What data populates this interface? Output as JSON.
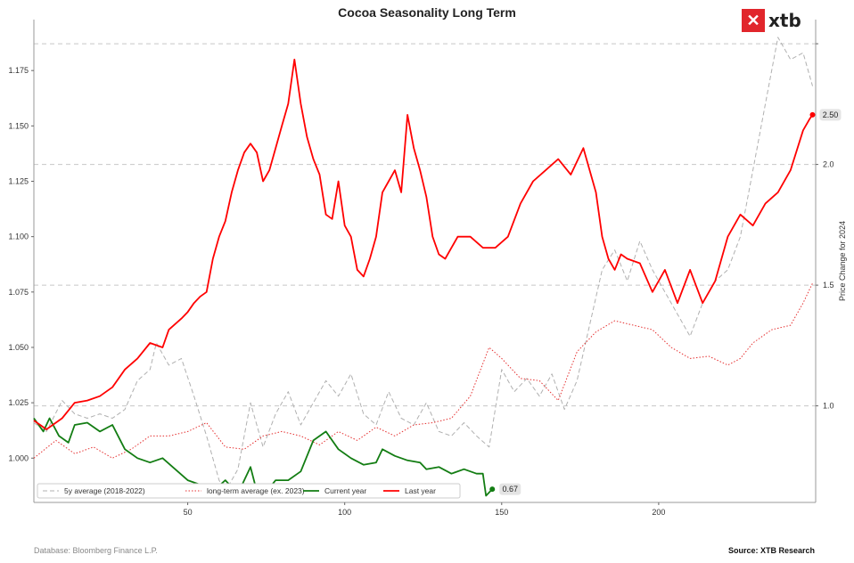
{
  "title": "Cocoa Seasonality Long Term",
  "logo": {
    "mark": "✕",
    "text": "xtb"
  },
  "footer": {
    "left": "Database: Bloomberg Finance L.P.",
    "right": "Source: XTB Research"
  },
  "chart_data": {
    "type": "line",
    "title": "Cocoa Seasonality Long Term",
    "xlabel": "",
    "ylabel_left": "",
    "ylabel_right": "Price Change for 2024",
    "xlim": [
      1,
      250
    ],
    "ylim_left": [
      0.98,
      1.198
    ],
    "ylim_right": [
      0.6,
      2.6
    ],
    "x_ticks": [
      50,
      100,
      150,
      200
    ],
    "y_ticks_left": [
      1.0,
      1.025,
      1.05,
      1.075,
      1.1,
      1.125,
      1.15,
      1.175
    ],
    "y_ticks_left_labels": [
      "1.000",
      "1.025",
      "1.050",
      "1.075",
      "1.100",
      "1.125",
      "1.150",
      "1.175"
    ],
    "y_ticks_right": [
      1.0,
      1.5,
      2.0,
      2.5
    ],
    "y_ticks_right_labels": [
      "1.0",
      "1.5",
      "2.0",
      ""
    ],
    "grid": "horizontal dashed at right-axis ticks",
    "legend": "bottom-left",
    "series": [
      {
        "name": "5y average (2018-2022)",
        "axis": "left",
        "color": "#b0b0b0",
        "style": "dashed",
        "x": [
          1,
          5,
          10,
          14,
          18,
          22,
          26,
          30,
          34,
          38,
          40,
          44,
          48,
          52,
          56,
          60,
          62,
          66,
          70,
          74,
          78,
          82,
          86,
          90,
          94,
          98,
          102,
          106,
          110,
          114,
          118,
          122,
          126,
          130,
          134,
          138,
          142,
          146,
          150,
          154,
          158,
          162,
          166,
          170,
          174,
          178,
          182,
          186,
          190,
          194,
          198,
          202,
          206,
          210,
          214,
          218,
          222,
          226,
          230,
          234,
          238,
          242,
          246,
          249
        ],
        "y": [
          1.016,
          1.012,
          1.026,
          1.02,
          1.018,
          1.02,
          1.018,
          1.022,
          1.035,
          1.04,
          1.052,
          1.042,
          1.045,
          1.028,
          1.01,
          0.99,
          0.985,
          0.995,
          1.025,
          1.005,
          1.02,
          1.03,
          1.015,
          1.025,
          1.035,
          1.028,
          1.038,
          1.02,
          1.015,
          1.03,
          1.018,
          1.015,
          1.025,
          1.012,
          1.01,
          1.016,
          1.01,
          1.005,
          1.04,
          1.03,
          1.036,
          1.028,
          1.038,
          1.022,
          1.035,
          1.06,
          1.085,
          1.094,
          1.08,
          1.098,
          1.085,
          1.075,
          1.065,
          1.055,
          1.07,
          1.08,
          1.085,
          1.1,
          1.13,
          1.16,
          1.19,
          1.18,
          1.183,
          1.168
        ]
      },
      {
        "name": "long-term average (ex. 2023)",
        "axis": "left",
        "color": "#e53030",
        "style": "dotted",
        "x": [
          1,
          8,
          14,
          20,
          26,
          32,
          38,
          44,
          50,
          56,
          62,
          68,
          74,
          80,
          86,
          92,
          98,
          104,
          110,
          116,
          122,
          128,
          134,
          140,
          146,
          150,
          156,
          162,
          168,
          174,
          180,
          186,
          192,
          198,
          204,
          210,
          216,
          222,
          226,
          230,
          236,
          242,
          246,
          249
        ],
        "y": [
          1.0,
          1.008,
          1.002,
          1.005,
          1.0,
          1.004,
          1.01,
          1.01,
          1.012,
          1.016,
          1.005,
          1.004,
          1.01,
          1.012,
          1.01,
          1.006,
          1.012,
          1.008,
          1.014,
          1.01,
          1.015,
          1.016,
          1.018,
          1.028,
          1.05,
          1.045,
          1.036,
          1.035,
          1.026,
          1.048,
          1.057,
          1.062,
          1.06,
          1.058,
          1.05,
          1.045,
          1.046,
          1.042,
          1.045,
          1.052,
          1.058,
          1.06,
          1.07,
          1.079
        ]
      },
      {
        "name": "Current year",
        "axis": "left",
        "color": "#137d13",
        "style": "solid",
        "x": [
          1,
          4,
          6,
          9,
          12,
          14,
          18,
          22,
          26,
          30,
          34,
          38,
          42,
          46,
          50,
          54,
          58,
          62,
          66,
          70,
          72,
          74,
          78,
          82,
          86,
          90,
          94,
          98,
          102,
          106,
          110,
          112,
          116,
          120,
          124,
          126,
          130,
          134,
          138,
          142,
          144,
          145,
          147
        ],
        "y": [
          1.018,
          1.012,
          1.018,
          1.01,
          1.007,
          1.015,
          1.016,
          1.012,
          1.015,
          1.004,
          1.0,
          0.998,
          1.0,
          0.995,
          0.99,
          0.988,
          0.985,
          0.99,
          0.984,
          0.996,
          0.985,
          0.983,
          0.99,
          0.99,
          0.994,
          1.008,
          1.012,
          1.004,
          1.0,
          0.997,
          0.998,
          1.004,
          1.001,
          0.999,
          0.998,
          0.995,
          0.996,
          0.993,
          0.995,
          0.993,
          0.993,
          0.983,
          0.986
        ]
      },
      {
        "name": "Last year",
        "axis": "left",
        "color": "#ff0000",
        "style": "solid",
        "x": [
          1,
          5,
          10,
          14,
          18,
          22,
          26,
          30,
          34,
          38,
          42,
          44,
          48,
          50,
          52,
          54,
          56,
          58,
          60,
          62,
          64,
          66,
          68,
          70,
          72,
          74,
          76,
          78,
          80,
          82,
          84,
          86,
          88,
          90,
          92,
          94,
          96,
          98,
          100,
          102,
          104,
          106,
          108,
          110,
          112,
          114,
          116,
          118,
          120,
          122,
          124,
          126,
          128,
          130,
          132,
          136,
          140,
          144,
          148,
          152,
          156,
          160,
          164,
          168,
          172,
          176,
          180,
          182,
          184,
          186,
          188,
          190,
          194,
          198,
          202,
          206,
          210,
          214,
          218,
          222,
          226,
          230,
          234,
          238,
          242,
          246,
          248,
          249
        ],
        "y": [
          1.017,
          1.013,
          1.018,
          1.025,
          1.026,
          1.028,
          1.032,
          1.04,
          1.045,
          1.052,
          1.05,
          1.058,
          1.063,
          1.066,
          1.07,
          1.073,
          1.075,
          1.09,
          1.1,
          1.107,
          1.12,
          1.13,
          1.138,
          1.142,
          1.138,
          1.125,
          1.13,
          1.14,
          1.15,
          1.16,
          1.18,
          1.16,
          1.145,
          1.135,
          1.128,
          1.11,
          1.108,
          1.125,
          1.105,
          1.1,
          1.085,
          1.082,
          1.09,
          1.1,
          1.12,
          1.125,
          1.13,
          1.12,
          1.155,
          1.14,
          1.13,
          1.118,
          1.1,
          1.092,
          1.09,
          1.1,
          1.1,
          1.095,
          1.095,
          1.1,
          1.115,
          1.125,
          1.13,
          1.135,
          1.128,
          1.14,
          1.12,
          1.1,
          1.09,
          1.085,
          1.092,
          1.09,
          1.088,
          1.075,
          1.085,
          1.07,
          1.085,
          1.07,
          1.08,
          1.1,
          1.11,
          1.105,
          1.115,
          1.12,
          1.13,
          1.148,
          1.153,
          1.155
        ]
      }
    ],
    "annotations": [
      {
        "series": "Current year",
        "x": 147,
        "y": 0.986,
        "label": "0.67"
      },
      {
        "series": "Last year",
        "x": 249,
        "y": 1.155,
        "label": "2.50"
      }
    ]
  }
}
